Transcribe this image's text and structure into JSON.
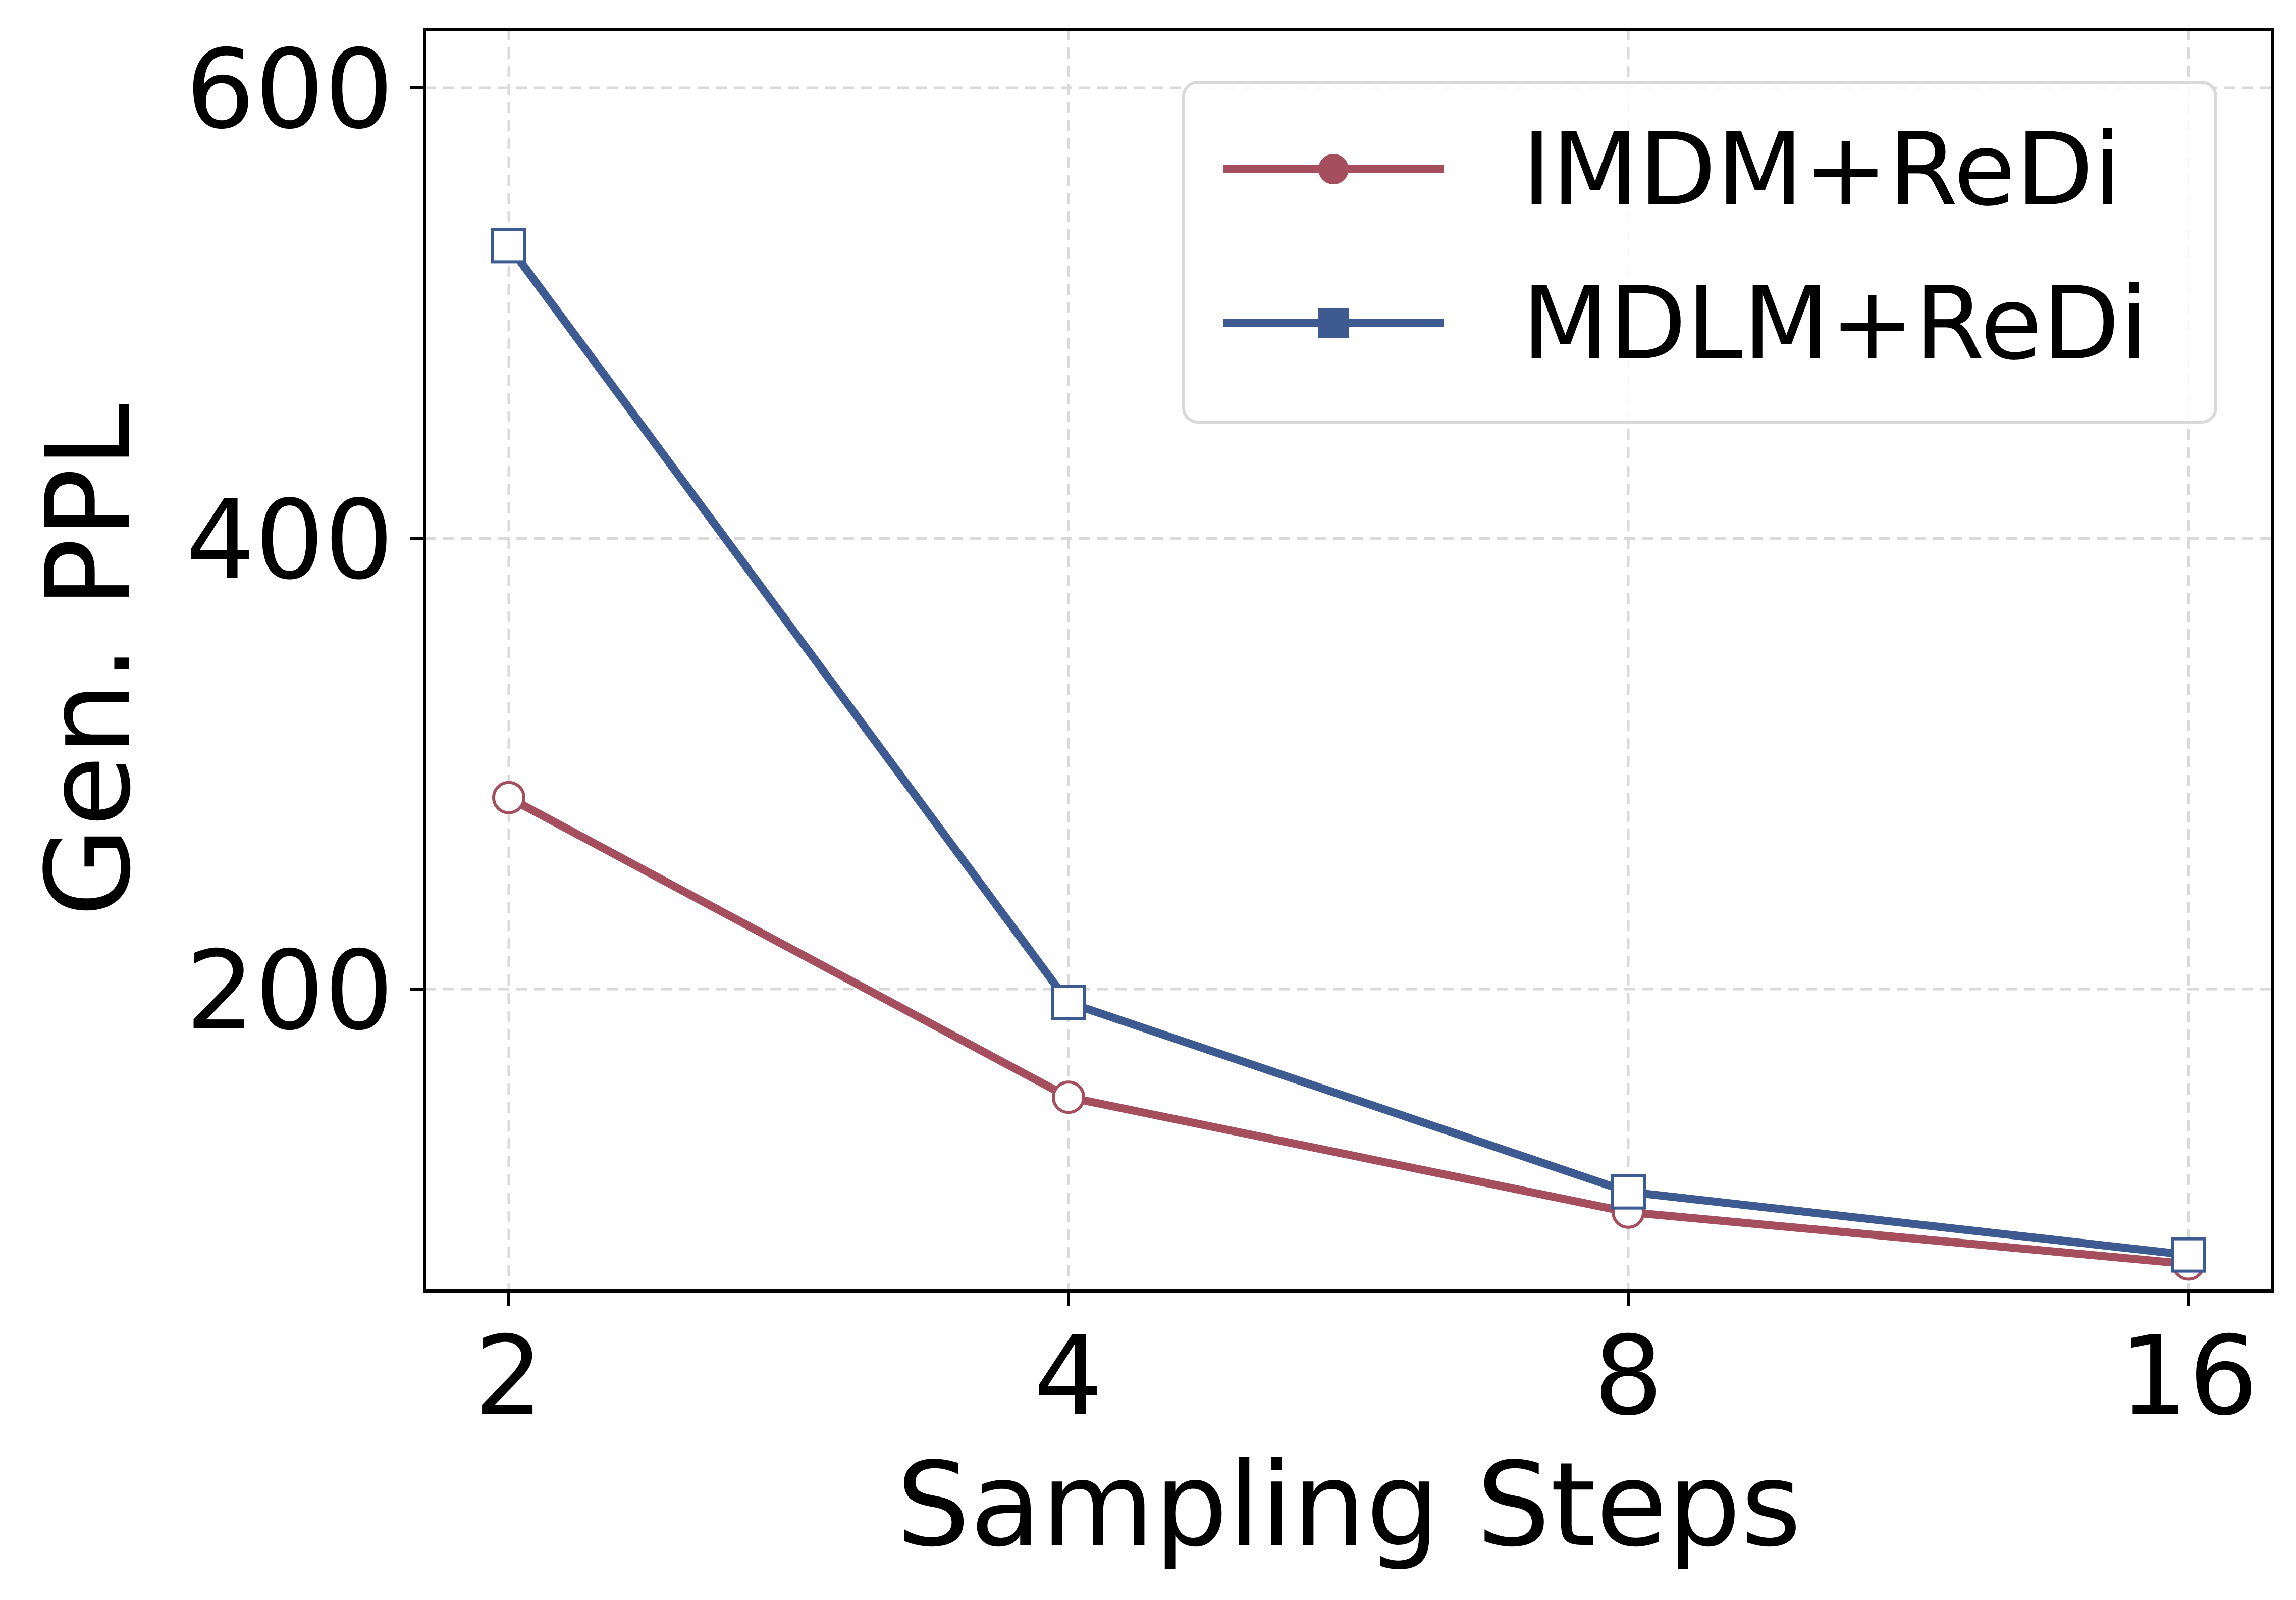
{
  "chart_data": {
    "type": "line",
    "title": "",
    "xlabel": "Sampling Steps",
    "ylabel": "Gen. PPL",
    "x": [
      "2",
      "4",
      "8",
      "16"
    ],
    "x_scale": "log2",
    "ylim": [
      66,
      626
    ],
    "yticks": [
      "200",
      "400",
      "600"
    ],
    "grid": true,
    "legend_position": "top-right",
    "series": [
      {
        "name": "IMDM+ReDi",
        "color": "#a54e5e",
        "marker": "circle",
        "values": [
          285,
          152,
          101,
          78
        ]
      },
      {
        "name": "MDLM+ReDi",
        "color": "#3d5a91",
        "marker": "square",
        "values": [
          530,
          194,
          110,
          82
        ]
      }
    ]
  }
}
